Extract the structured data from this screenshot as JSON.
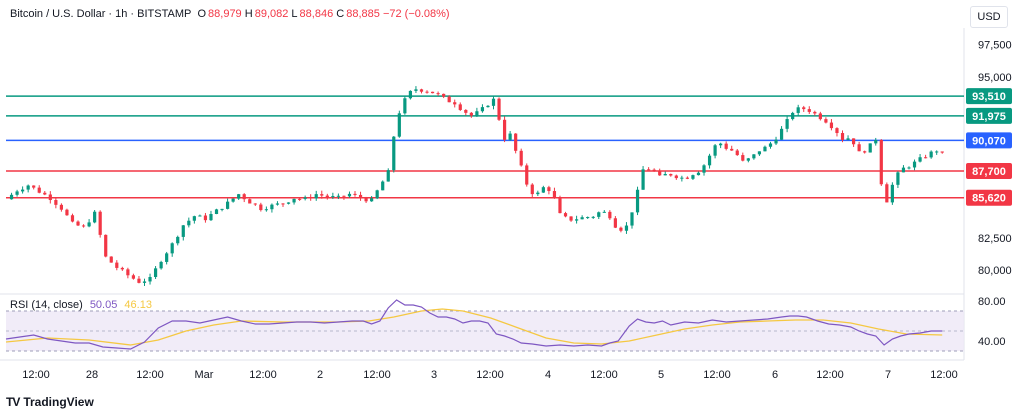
{
  "header": {
    "symbol": "Bitcoin / U.S. Dollar · 1h · BITSTAMP",
    "o_label": "O",
    "o_value": "88,979",
    "h_label": "H",
    "h_value": "89,082",
    "l_label": "L",
    "l_value": "88,846",
    "c_label": "C",
    "c_value": "88,885",
    "change": "−72 (−0.08%)"
  },
  "currency": "USD",
  "brand": {
    "name": "TradingView",
    "mark": "TV"
  },
  "rsi_label": {
    "name": "RSI (14, close)",
    "rsi": "50.05",
    "ma": "46.13"
  },
  "colors": {
    "up": "#089981",
    "down": "#f23645",
    "rsi": "#7e57c2",
    "rsi_ma": "#f5c842",
    "blue_line": "#2962ff"
  },
  "chart_data": {
    "type": "candlestick",
    "price_axis": {
      "ticks": [
        "97,500",
        "95,000",
        "82,500",
        "80,000"
      ],
      "range": [
        78300,
        98800
      ]
    },
    "levels": [
      {
        "value": 93510,
        "label": "93,510",
        "color": "#089981"
      },
      {
        "value": 91975,
        "label": "91,975",
        "color": "#089981"
      },
      {
        "value": 90070,
        "label": "90,070",
        "color": "#2962ff"
      },
      {
        "value": 87700,
        "label": "87,700",
        "color": "#f23645"
      },
      {
        "value": 85620,
        "label": "85,620",
        "color": "#f23645"
      }
    ],
    "x_axis": {
      "labels": [
        "12:00",
        "28",
        "12:00",
        "Mar",
        "12:00",
        "2",
        "12:00",
        "3",
        "12:00",
        "4",
        "12:00",
        "5",
        "12:00",
        "6",
        "12:00",
        "7",
        "12:00"
      ]
    },
    "rsi_axis": {
      "ticks": [
        "80.00",
        "40.00"
      ],
      "range": [
        25,
        85
      ],
      "band": [
        30,
        70
      ]
    },
    "price_path": [
      [
        0,
        85.5
      ],
      [
        8,
        86.2
      ],
      [
        16,
        86.6
      ],
      [
        24,
        86.1
      ],
      [
        32,
        85.6
      ],
      [
        40,
        84.8
      ],
      [
        48,
        83.6
      ],
      [
        56,
        83.3
      ],
      [
        64,
        84.4
      ],
      [
        72,
        81.0
      ],
      [
        80,
        80.2
      ],
      [
        88,
        79.6
      ],
      [
        96,
        79.1
      ],
      [
        104,
        79.3
      ],
      [
        112,
        80.8
      ],
      [
        120,
        82.0
      ],
      [
        128,
        83.5
      ],
      [
        136,
        84.2
      ],
      [
        144,
        84.0
      ],
      [
        152,
        84.6
      ],
      [
        160,
        85.2
      ],
      [
        168,
        85.9
      ],
      [
        176,
        85.3
      ],
      [
        184,
        84.8
      ],
      [
        192,
        85.0
      ],
      [
        200,
        85.2
      ],
      [
        208,
        85.6
      ],
      [
        216,
        85.5
      ],
      [
        224,
        85.9
      ],
      [
        232,
        85.7
      ],
      [
        240,
        85.6
      ],
      [
        248,
        85.9
      ],
      [
        256,
        85.6
      ],
      [
        264,
        85.4
      ],
      [
        270,
        86.5
      ],
      [
        276,
        87.6
      ],
      [
        282,
        91.8
      ],
      [
        288,
        93.2
      ],
      [
        294,
        94.1
      ],
      [
        300,
        94.0
      ],
      [
        306,
        93.9
      ],
      [
        312,
        93.6
      ],
      [
        318,
        93.2
      ],
      [
        324,
        93.0
      ],
      [
        330,
        92.4
      ],
      [
        336,
        92.0
      ],
      [
        342,
        92.3
      ],
      [
        348,
        92.9
      ],
      [
        354,
        93.4
      ],
      [
        358,
        90.1
      ],
      [
        364,
        90.5
      ],
      [
        370,
        88.6
      ],
      [
        376,
        86.7
      ],
      [
        382,
        85.7
      ],
      [
        388,
        86.4
      ],
      [
        394,
        86.2
      ],
      [
        400,
        84.3
      ],
      [
        406,
        83.9
      ],
      [
        412,
        84.0
      ],
      [
        418,
        84.1
      ],
      [
        424,
        84.2
      ],
      [
        430,
        84.6
      ],
      [
        436,
        84.2
      ],
      [
        442,
        83.1
      ],
      [
        448,
        83.4
      ],
      [
        454,
        85.2
      ],
      [
        460,
        87.8
      ],
      [
        466,
        87.9
      ],
      [
        472,
        87.2
      ],
      [
        478,
        87.5
      ],
      [
        484,
        87.3
      ],
      [
        490,
        87.1
      ],
      [
        496,
        87.5
      ],
      [
        502,
        87.8
      ],
      [
        508,
        88.9
      ],
      [
        514,
        90.0
      ],
      [
        520,
        89.5
      ],
      [
        526,
        89.2
      ],
      [
        532,
        88.4
      ],
      [
        538,
        88.7
      ],
      [
        544,
        89.3
      ],
      [
        550,
        89.6
      ],
      [
        556,
        90.3
      ],
      [
        562,
        91.2
      ],
      [
        568,
        92.3
      ],
      [
        574,
        92.6
      ],
      [
        580,
        92.4
      ],
      [
        586,
        92.0
      ],
      [
        592,
        91.6
      ],
      [
        598,
        91.0
      ],
      [
        604,
        90.2
      ],
      [
        610,
        90.3
      ],
      [
        616,
        89.1
      ],
      [
        622,
        89.4
      ],
      [
        628,
        90.2
      ],
      [
        632,
        86.8
      ],
      [
        636,
        85.4
      ],
      [
        642,
        87.2
      ],
      [
        648,
        87.9
      ],
      [
        654,
        88.2
      ],
      [
        660,
        88.6
      ],
      [
        666,
        89.0
      ],
      [
        672,
        89.3
      ],
      [
        678,
        88.8
      ]
    ],
    "rsi_path": [
      [
        0,
        42
      ],
      [
        10,
        44
      ],
      [
        20,
        46
      ],
      [
        30,
        42
      ],
      [
        40,
        40
      ],
      [
        50,
        38
      ],
      [
        60,
        38
      ],
      [
        70,
        34
      ],
      [
        80,
        33
      ],
      [
        90,
        32
      ],
      [
        100,
        39
      ],
      [
        110,
        53
      ],
      [
        120,
        60
      ],
      [
        130,
        60
      ],
      [
        140,
        58
      ],
      [
        150,
        61
      ],
      [
        160,
        64
      ],
      [
        170,
        60
      ],
      [
        180,
        57
      ],
      [
        190,
        57
      ],
      [
        200,
        58
      ],
      [
        210,
        59
      ],
      [
        220,
        59
      ],
      [
        230,
        58
      ],
      [
        240,
        59
      ],
      [
        250,
        60
      ],
      [
        258,
        60
      ],
      [
        264,
        57
      ],
      [
        270,
        60
      ],
      [
        276,
        73
      ],
      [
        282,
        81
      ],
      [
        288,
        76
      ],
      [
        294,
        76
      ],
      [
        300,
        74
      ],
      [
        306,
        68
      ],
      [
        312,
        64
      ],
      [
        318,
        64
      ],
      [
        324,
        62
      ],
      [
        330,
        58
      ],
      [
        336,
        60
      ],
      [
        342,
        60
      ],
      [
        348,
        58
      ],
      [
        354,
        47
      ],
      [
        360,
        45
      ],
      [
        366,
        42
      ],
      [
        372,
        38
      ],
      [
        380,
        37
      ],
      [
        390,
        35
      ],
      [
        400,
        36
      ],
      [
        410,
        35
      ],
      [
        420,
        36
      ],
      [
        430,
        35
      ],
      [
        436,
        38
      ],
      [
        442,
        40
      ],
      [
        450,
        55
      ],
      [
        456,
        62
      ],
      [
        462,
        59
      ],
      [
        468,
        58
      ],
      [
        474,
        60
      ],
      [
        480,
        56
      ],
      [
        490,
        59
      ],
      [
        500,
        58
      ],
      [
        510,
        61
      ],
      [
        520,
        59
      ],
      [
        530,
        60
      ],
      [
        540,
        61
      ],
      [
        550,
        62
      ],
      [
        560,
        64
      ],
      [
        566,
        65
      ],
      [
        572,
        65
      ],
      [
        578,
        64
      ],
      [
        586,
        60
      ],
      [
        594,
        57
      ],
      [
        602,
        56
      ],
      [
        610,
        54
      ],
      [
        616,
        50
      ],
      [
        622,
        47
      ],
      [
        628,
        45
      ],
      [
        634,
        36
      ],
      [
        640,
        42
      ],
      [
        646,
        45
      ],
      [
        652,
        47
      ],
      [
        660,
        48
      ],
      [
        668,
        50
      ],
      [
        676,
        50
      ]
    ],
    "rsi_ma_path": [
      [
        0,
        39
      ],
      [
        30,
        43
      ],
      [
        60,
        41
      ],
      [
        90,
        36
      ],
      [
        110,
        41
      ],
      [
        130,
        50
      ],
      [
        150,
        56
      ],
      [
        170,
        60
      ],
      [
        200,
        59
      ],
      [
        240,
        59
      ],
      [
        262,
        60
      ],
      [
        280,
        64
      ],
      [
        300,
        70
      ],
      [
        315,
        72
      ],
      [
        330,
        70
      ],
      [
        350,
        63
      ],
      [
        370,
        53
      ],
      [
        390,
        43
      ],
      [
        410,
        38
      ],
      [
        430,
        37
      ],
      [
        450,
        40
      ],
      [
        470,
        46
      ],
      [
        490,
        52
      ],
      [
        510,
        56
      ],
      [
        530,
        59
      ],
      [
        550,
        60
      ],
      [
        570,
        61
      ],
      [
        590,
        61
      ],
      [
        610,
        58
      ],
      [
        630,
        52
      ],
      [
        650,
        47
      ],
      [
        676,
        46
      ]
    ]
  }
}
